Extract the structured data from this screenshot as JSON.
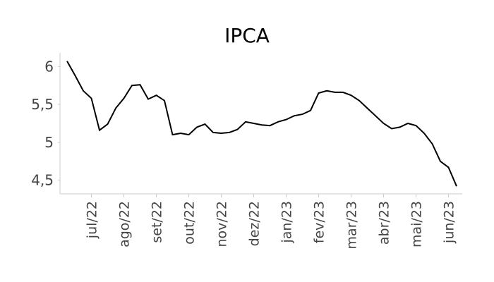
{
  "chart_data": {
    "type": "line",
    "title": "IPCA",
    "categories": [
      null,
      null,
      null,
      "jul/22",
      null,
      null,
      null,
      "ago/22",
      null,
      null,
      null,
      "set/22",
      null,
      null,
      null,
      "out/22",
      null,
      null,
      null,
      "nov/22",
      null,
      null,
      null,
      "dez/22",
      null,
      null,
      null,
      "jan/23",
      null,
      null,
      null,
      "fev/23",
      null,
      null,
      null,
      "mar/23",
      null,
      null,
      null,
      "abr/23",
      null,
      null,
      null,
      "mai/23",
      null,
      null,
      null,
      "jun/23",
      null
    ],
    "series": [
      {
        "name": "IPCA",
        "color": "#000000",
        "values": [
          6.07,
          5.88,
          5.68,
          5.58,
          5.16,
          5.24,
          5.45,
          5.58,
          5.75,
          5.76,
          5.57,
          5.62,
          5.55,
          5.1,
          5.12,
          5.1,
          5.2,
          5.24,
          5.13,
          5.12,
          5.13,
          5.17,
          5.27,
          5.25,
          5.23,
          5.22,
          5.27,
          5.3,
          5.35,
          5.37,
          5.42,
          5.65,
          5.68,
          5.66,
          5.66,
          5.62,
          5.55,
          5.45,
          5.35,
          5.25,
          5.18,
          5.2,
          5.25,
          5.22,
          5.12,
          4.98,
          4.75,
          4.67,
          4.42
        ]
      }
    ],
    "ylim": [
      4.32,
      6.18
    ],
    "yticks": [
      {
        "value": 4.5,
        "label": "4,5"
      },
      5,
      {
        "value": 5.5,
        "label": "5,5"
      },
      6
    ]
  }
}
